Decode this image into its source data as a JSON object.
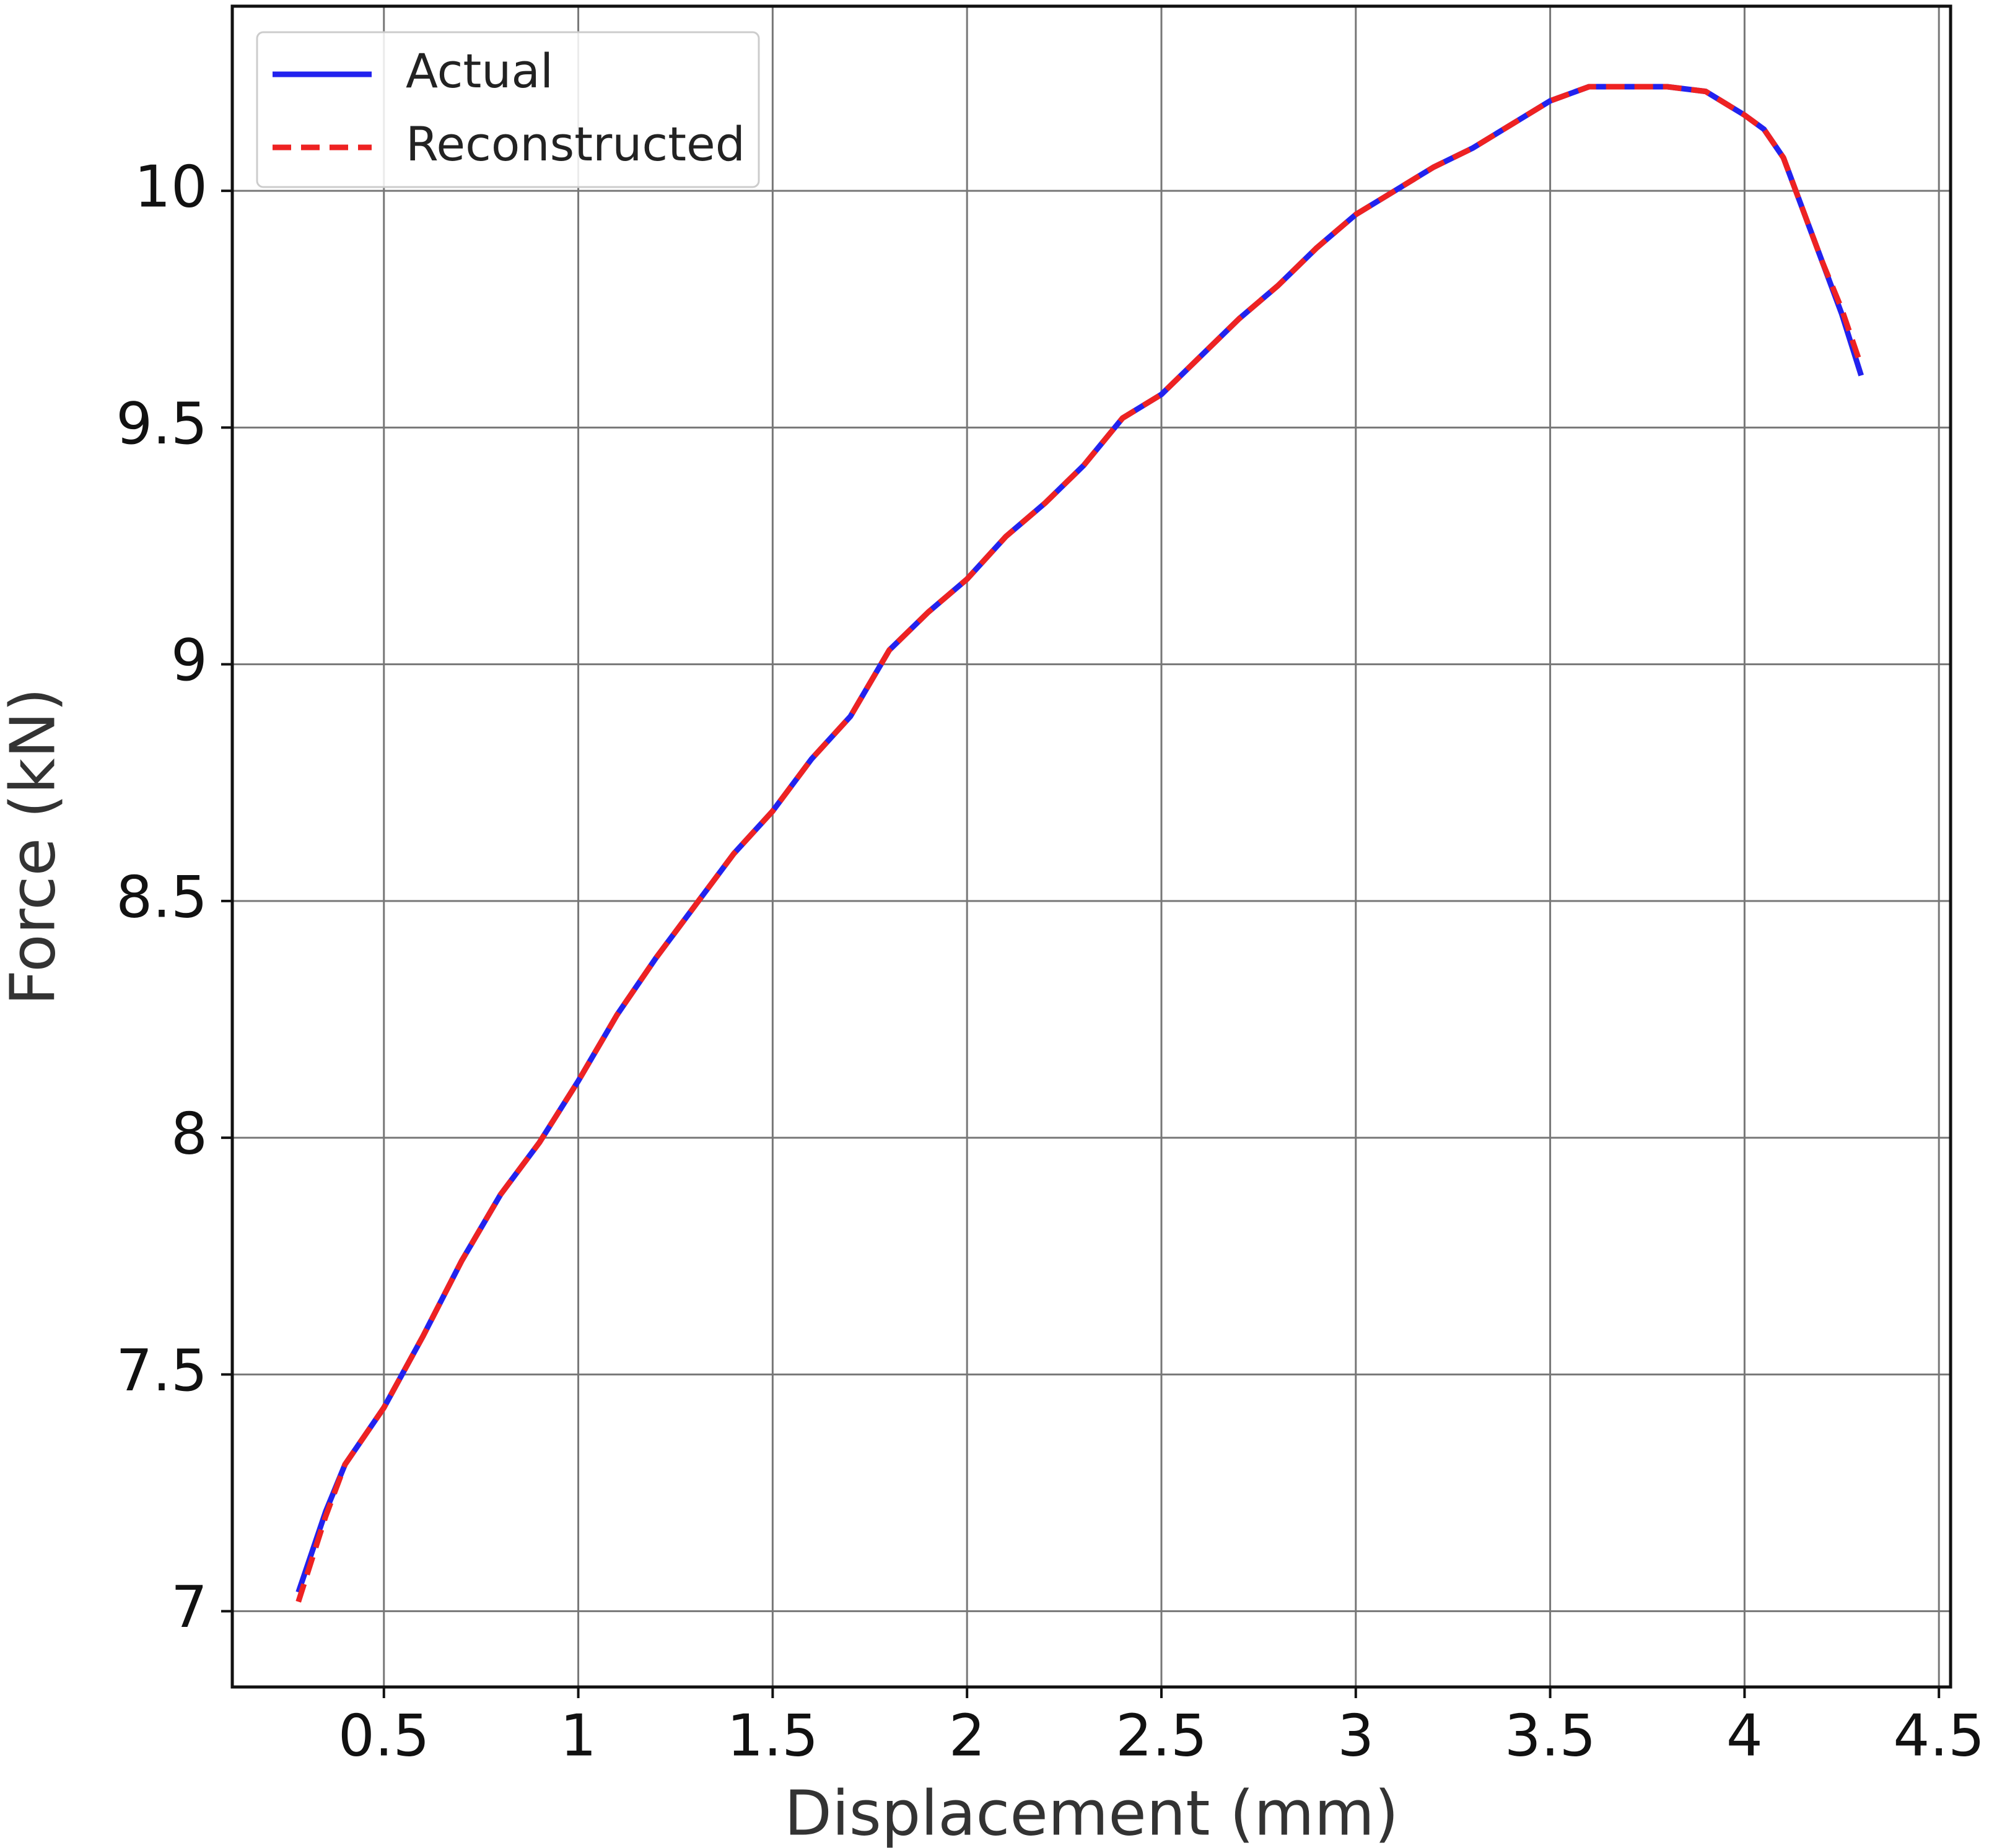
{
  "chart_data": {
    "type": "line",
    "x_label": "Displacement (mm)",
    "y_label": "Force (kN)",
    "xlim": [
      0.11,
      4.53
    ],
    "ylim": [
      6.84,
      10.39
    ],
    "xticks": [
      0.5,
      1,
      1.5,
      2,
      2.5,
      3,
      3.5,
      4,
      4.5
    ],
    "yticks": [
      7,
      7.5,
      8,
      8.5,
      9,
      9.5,
      10
    ],
    "grid": true,
    "legend": "upper left",
    "x": [
      0.28,
      0.35,
      0.4,
      0.5,
      0.6,
      0.7,
      0.8,
      0.9,
      1.0,
      1.1,
      1.2,
      1.3,
      1.4,
      1.5,
      1.6,
      1.7,
      1.8,
      1.9,
      2.0,
      2.1,
      2.2,
      2.3,
      2.4,
      2.5,
      2.6,
      2.7,
      2.8,
      2.9,
      3.0,
      3.1,
      3.2,
      3.3,
      3.4,
      3.5,
      3.6,
      3.7,
      3.8,
      3.9,
      4.0,
      4.05,
      4.1,
      4.15,
      4.2,
      4.25,
      4.3
    ],
    "series": [
      {
        "name": "Actual",
        "color": "#2222ee",
        "linestyle": "solid",
        "values": [
          7.04,
          7.21,
          7.31,
          7.43,
          7.58,
          7.74,
          7.88,
          7.99,
          8.12,
          8.26,
          8.38,
          8.49,
          8.6,
          8.69,
          8.8,
          8.89,
          9.03,
          9.11,
          9.18,
          9.27,
          9.34,
          9.42,
          9.52,
          9.57,
          9.65,
          9.73,
          9.8,
          9.88,
          9.95,
          10.0,
          10.05,
          10.09,
          10.14,
          10.19,
          10.22,
          10.22,
          10.22,
          10.21,
          10.16,
          10.13,
          10.07,
          9.96,
          9.85,
          9.74,
          9.61
        ]
      },
      {
        "name": "Reconstructed",
        "color": "#ee2222",
        "linestyle": "dashed",
        "values": [
          7.02,
          7.2,
          7.31,
          7.43,
          7.58,
          7.74,
          7.88,
          7.99,
          8.12,
          8.26,
          8.38,
          8.49,
          8.6,
          8.69,
          8.8,
          8.89,
          9.03,
          9.11,
          9.18,
          9.27,
          9.34,
          9.42,
          9.52,
          9.57,
          9.65,
          9.73,
          9.8,
          9.88,
          9.95,
          10.0,
          10.05,
          10.09,
          10.14,
          10.19,
          10.22,
          10.22,
          10.22,
          10.21,
          10.16,
          10.13,
          10.07,
          9.96,
          9.85,
          9.75,
          9.63
        ]
      }
    ]
  }
}
